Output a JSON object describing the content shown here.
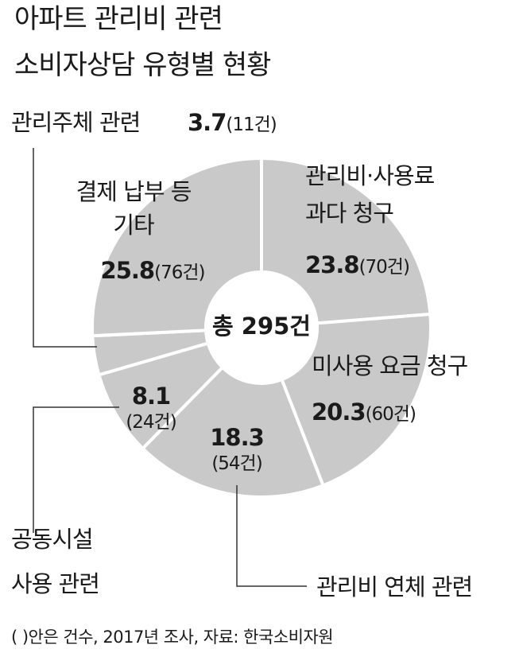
{
  "title_line1": "아파트 관리비 관련",
  "title_line2": "소비자상담 유형별 현황",
  "footnote": "(   )안은 건수, 2017년 조사, 자료: 한국소비자원",
  "center_label": "총 295건",
  "colors": {
    "slice": "#c9c9c9",
    "stroke": "#ffffff",
    "text": "#1a1a1a",
    "leader": "#333333"
  },
  "chart_data": {
    "type": "pie",
    "donut": true,
    "total_label": "총 295건",
    "unit": "%",
    "slices": [
      {
        "label": [
          "관리비·사용료",
          "과다 청구"
        ],
        "percent": "23.8",
        "count": "(70건)",
        "value": 70
      },
      {
        "label": [
          "미사용 요금 청구"
        ],
        "percent": "20.3",
        "count": "(60건)",
        "value": 60
      },
      {
        "label": [
          "관리비 연체 관련"
        ],
        "percent": "18.3",
        "count": "(54건)",
        "value": 54
      },
      {
        "label": [
          "공동시설",
          "사용 관련"
        ],
        "percent": "8.1",
        "count": "(24건)",
        "value": 24
      },
      {
        "label": [
          "관리주체 관련"
        ],
        "percent": "3.7",
        "count": "(11건)",
        "value": 11
      },
      {
        "label": [
          "결제 납부 등",
          "기타"
        ],
        "percent": "25.8",
        "count": "(76건)",
        "value": 76
      }
    ]
  }
}
